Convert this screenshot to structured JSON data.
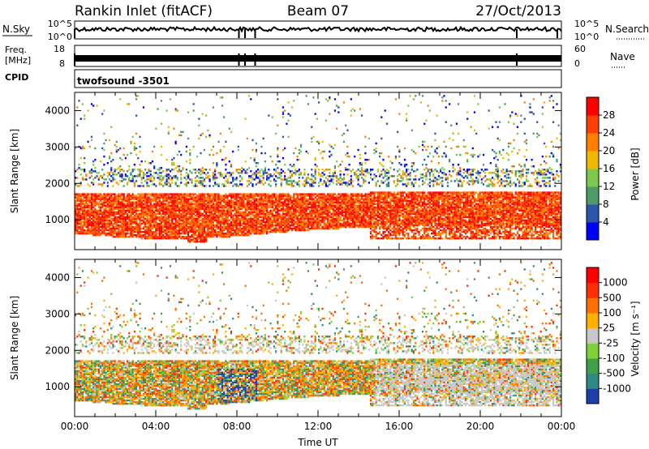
{
  "header": {
    "site": "Rankin Inlet (fitACF)",
    "beam": "Beam 07",
    "date": "27/Oct/2013"
  },
  "strips": {
    "nsky": {
      "label": "N.Sky",
      "left_ticks": [
        "10^5",
        "10^0"
      ],
      "right_ticks": [
        "10^5",
        "10^0"
      ],
      "right_label": "N.Search"
    },
    "freq": {
      "label_line1": "Freq.",
      "label_line2": "[MHz]",
      "left_ticks": [
        "18",
        "8"
      ],
      "right_ticks": [
        "60",
        "0"
      ],
      "right_label": "Nave"
    },
    "cpid": {
      "label": "CPID",
      "value": "twofsound -3501"
    }
  },
  "chart_data": [
    {
      "type": "heatmap",
      "name": "power-panel",
      "ylabel": "Slant Range [km]",
      "ylim": [
        180,
        4500
      ],
      "xlim_hours": [
        0,
        24
      ],
      "y_ticks": [
        "1000",
        "2000",
        "3000",
        "4000"
      ],
      "colorbar": {
        "label": "Power [dB]",
        "ticks": [
          "4",
          "8",
          "12",
          "16",
          "20",
          "24",
          "28"
        ],
        "colors": [
          "#0000ff",
          "#2a55a8",
          "#4d9a6b",
          "#7ec850",
          "#f0b800",
          "#ff8000",
          "#ff4000",
          "#ff0000"
        ]
      }
    },
    {
      "type": "heatmap",
      "name": "velocity-panel",
      "ylabel": "Slant Range [km]",
      "ylim": [
        180,
        4500
      ],
      "xlim_hours": [
        0,
        24
      ],
      "y_ticks": [
        "1000",
        "2000",
        "3000",
        "4000"
      ],
      "x_ticks": [
        "00:00",
        "04:00",
        "08:00",
        "12:00",
        "16:00",
        "20:00",
        "00:00"
      ],
      "xlabel": "Time UT",
      "colorbar": {
        "label": "Velocity [m s⁻¹]",
        "ticks": [
          "1000",
          "500",
          "100",
          "25",
          "-25",
          "-100",
          "-500",
          "-1000"
        ],
        "colors": [
          "#1f3fa8",
          "#2f8a86",
          "#3f9f4a",
          "#7fd03a",
          "#c8c8c8",
          "#ffb000",
          "#ff7000",
          "#ff3000",
          "#ff0000"
        ]
      }
    }
  ]
}
